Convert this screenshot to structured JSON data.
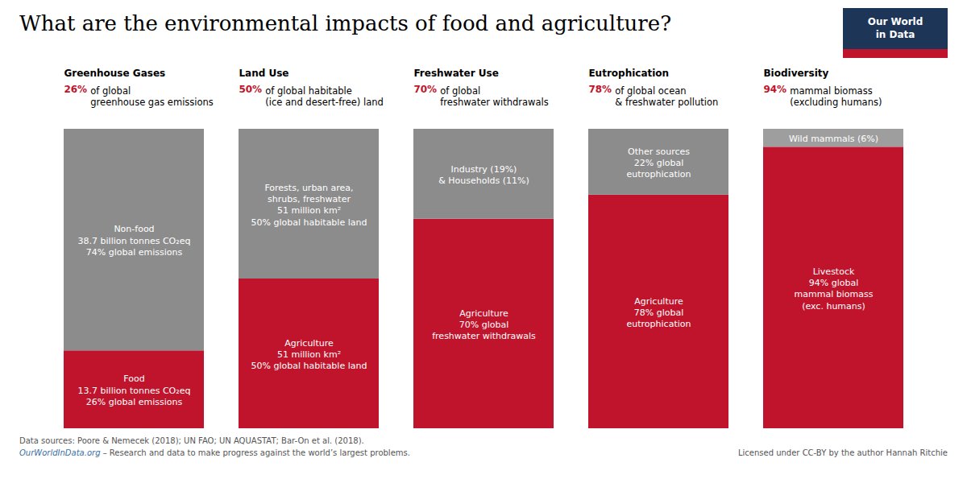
{
  "chart_data": {
    "type": "bar",
    "stacked": true,
    "title": "What are the environmental impacts of food and agriculture?",
    "categories": [
      "Greenhouse Gases",
      "Land Use",
      "Freshwater Use",
      "Eutrophication",
      "Biodiversity"
    ],
    "header_labels": [
      "26%",
      "50%",
      "70%",
      "78%",
      "94%"
    ],
    "header_texts": [
      "of global\ngreenhouse gas emissions",
      "of global habitable\n(ice and desert-free) land",
      "of global\nfreshwater withdrawals",
      "of global ocean\n& freshwater pollution",
      "mammal biomass\n(excluding humans)"
    ],
    "series": [
      {
        "color": "#c0142c",
        "values": [
          26,
          50,
          70,
          78,
          94
        ],
        "segment_labels": [
          "Food\n13.7 billion tonnes CO₂eq\n26% global emissions",
          "Agriculture\n51 million km²\n50% global habitable land",
          "Agriculture\n70% global\nfreshwater withdrawals",
          "Agriculture\n78% global\neutrophication",
          "Livestock\n94% global\nmammal biomass\n(exc. humans)"
        ]
      },
      {
        "colors": [
          "#8c8c8c",
          "#8c8c8c",
          "#8c8c8c",
          "#8c8c8c",
          "#9e9e9e"
        ],
        "values": [
          74,
          50,
          30,
          22,
          6
        ],
        "segment_labels": [
          "Non-food\n38.7 billion tonnes CO₂eq\n74% global emissions",
          "Forests, urban area,\nshrubs, freshwater\n51 million km²\n50% global habitable land",
          "Industry (19%)\n& Households (11%)",
          "Other sources\n22% global\neutrophication",
          "Wild mammals (6%)"
        ]
      }
    ],
    "ylim": [
      0,
      100
    ],
    "grid": false,
    "tick_labels": false,
    "logo": "Our World\nin Data",
    "footer": [
      "Data sources: Poore & Nemecek (2018); UN FAO; UN AQUASTAT; Bar-On et al. (2018).",
      "OurWorldInData.org",
      " – Research and data to make progress against the world’s largest problems.",
      "Licensed under CC-BY by the author Hannah Ritchie"
    ]
  }
}
